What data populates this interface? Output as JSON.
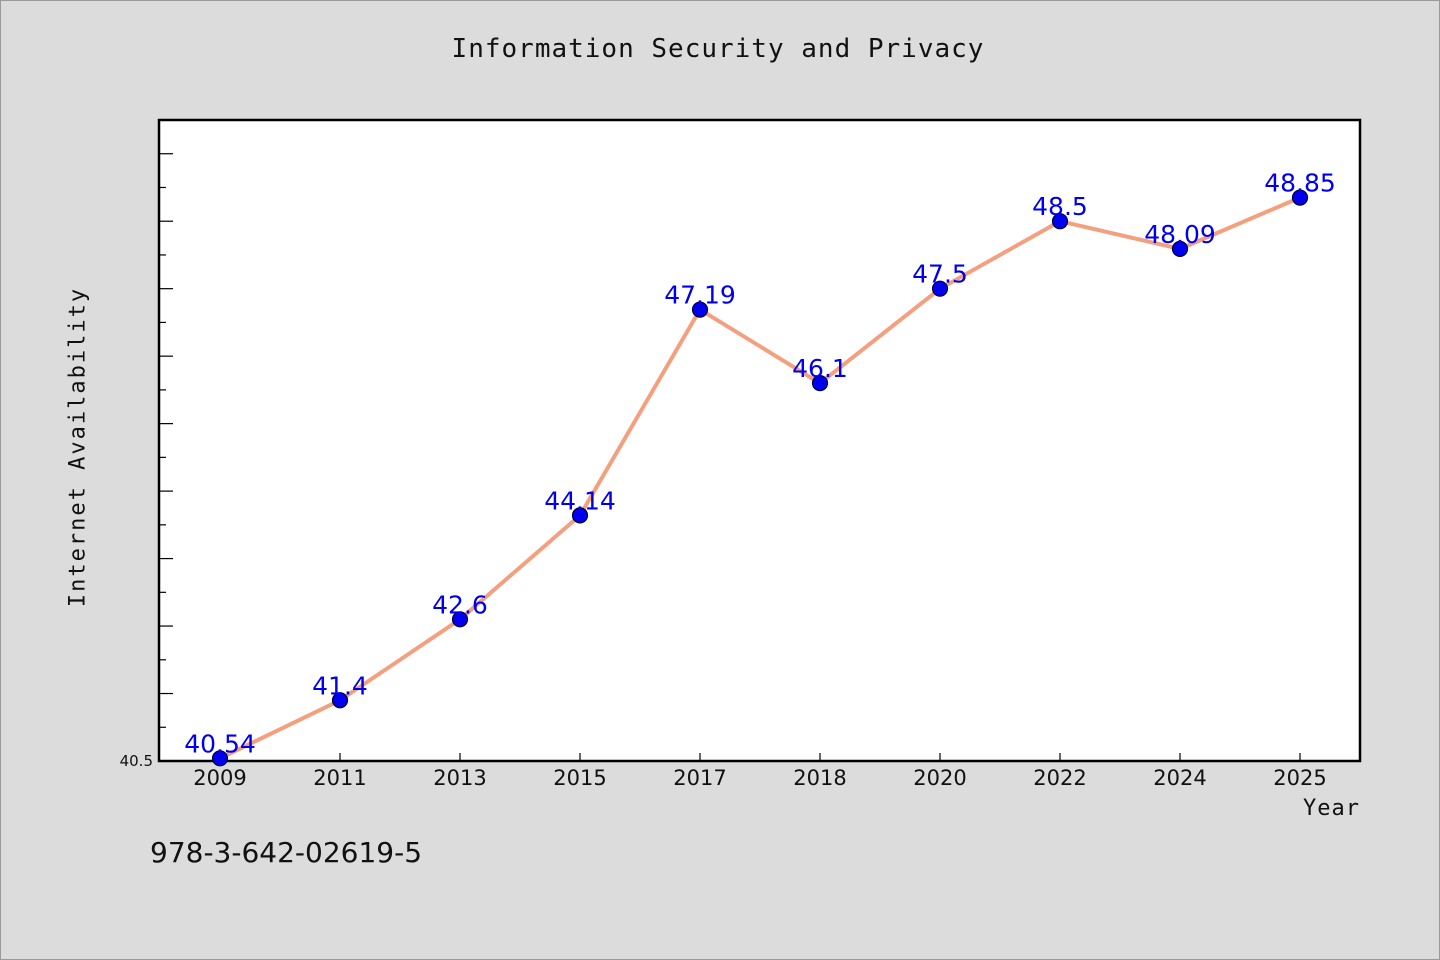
{
  "chart_data": {
    "type": "line",
    "title": "Information Security and Privacy",
    "xlabel": "Year",
    "ylabel": "Internet Availability",
    "categories": [
      "2009",
      "2011",
      "2013",
      "2015",
      "2017",
      "2018",
      "2020",
      "2022",
      "2024",
      "2025"
    ],
    "series": [
      {
        "values": [
          40.54,
          41.4,
          42.6,
          44.14,
          47.19,
          46.1,
          47.5,
          48.5,
          48.09,
          48.85
        ],
        "labels": [
          "40.54",
          "41.4",
          "42.6",
          "44.14",
          "47.19",
          "46.1",
          "47.5",
          "48.5",
          "48.09",
          "48.85"
        ]
      }
    ],
    "ylim": [
      40.5,
      50.0
    ],
    "yticks": [
      "40.5"
    ],
    "grid": false,
    "colors": {
      "line": "#f4a07e",
      "marker": "#0000ee",
      "label": "#0000ee",
      "plot_background": "#ffffff",
      "figure_background": "#dcdcdc"
    }
  },
  "footer": {
    "isbn": "978-3-642-02619-5"
  }
}
